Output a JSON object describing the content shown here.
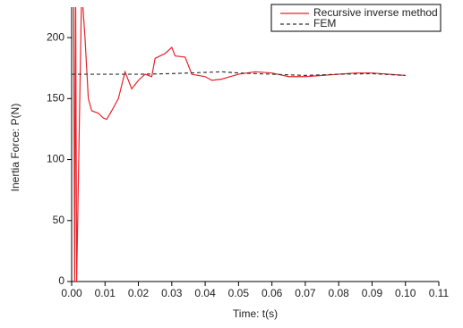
{
  "chart_data": {
    "type": "line",
    "x_label": "Time: t(s)",
    "y_label": "Inertia Force: P(N)",
    "xlim": [
      0,
      0.11
    ],
    "ylim": [
      0,
      225
    ],
    "xticks": [
      {
        "value": 0,
        "label": "0.00"
      },
      {
        "value": 0.01,
        "label": "0.01"
      },
      {
        "value": 0.02,
        "label": "0.02"
      },
      {
        "value": 0.03,
        "label": "0.03"
      },
      {
        "value": 0.04,
        "label": "0.04"
      },
      {
        "value": 0.05,
        "label": "0.05"
      },
      {
        "value": 0.06,
        "label": "0.06"
      },
      {
        "value": 0.07,
        "label": "0.07"
      },
      {
        "value": 0.08,
        "label": "0.08"
      },
      {
        "value": 0.09,
        "label": "0.09"
      },
      {
        "value": 0.1,
        "label": "0.10"
      },
      {
        "value": 0.11,
        "label": "0.11"
      }
    ],
    "yticks": [
      0,
      50,
      100,
      150,
      200
    ],
    "legend": "top-right",
    "series": [
      {
        "name": "Recursive inverse method",
        "color": "#e8232a",
        "dash": false,
        "x": [
          0.0006,
          0.0009,
          0.0012,
          0.0015,
          0.003,
          0.004,
          0.005,
          0.006,
          0.008,
          0.0095,
          0.0105,
          0.012,
          0.014,
          0.016,
          0.017,
          0.018,
          0.02,
          0.022,
          0.024,
          0.025,
          0.028,
          0.03,
          0.031,
          0.034,
          0.036,
          0.04,
          0.042,
          0.045,
          0.05,
          0.055,
          0.06,
          0.065,
          0.07,
          0.075,
          0.08,
          0.085,
          0.09,
          0.095,
          0.1
        ],
        "values": [
          240,
          0,
          240,
          0,
          240,
          200,
          150,
          140,
          138,
          134,
          133,
          140,
          150,
          172,
          165,
          158,
          165,
          170,
          168,
          183,
          187,
          192,
          185,
          184,
          170,
          168,
          165,
          166,
          170,
          172,
          171,
          168,
          168,
          169,
          170,
          171,
          171,
          170,
          169
        ]
      },
      {
        "name": "FEM",
        "color": "#333333",
        "dash": true,
        "x": [
          0,
          0.01,
          0.02,
          0.03,
          0.04,
          0.045,
          0.05,
          0.06,
          0.07,
          0.08,
          0.09,
          0.1
        ],
        "values": [
          170,
          170,
          170,
          170.5,
          171.5,
          172,
          171,
          170,
          169,
          170,
          170.5,
          169
        ]
      }
    ]
  }
}
